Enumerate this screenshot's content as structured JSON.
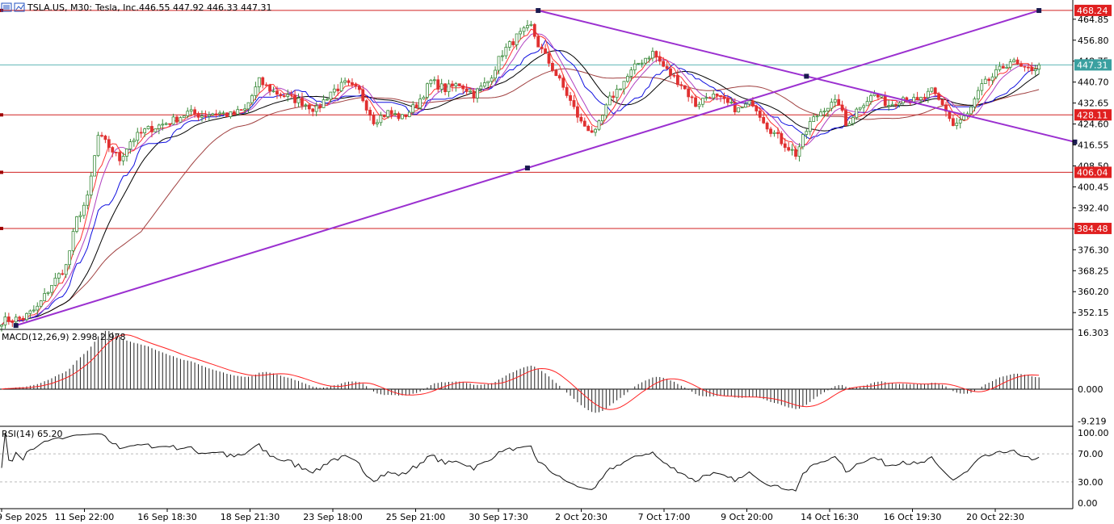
{
  "header": {
    "symbol": "TSLA.US, M30:",
    "name": "Tesla, Inc.",
    "ohlc": "446.55 447.92 446.33 447.31"
  },
  "macd_label": "MACD(12,26,9) 2.998 2.978",
  "rsi_label": "RSI(14) 65.20",
  "colors": {
    "bull": "#3a8a3a",
    "bear": "#e03030",
    "trendline": "#9b30d0",
    "level": "#d02020",
    "price_line": "#5fb5b5",
    "ma_black": "#000000",
    "ma_brown": "#a04040",
    "ma_blue": "#1010e0",
    "ma_purple": "#b040c0",
    "ma_red": "#ff3030"
  },
  "chart_data": {
    "type": "line",
    "price_axis": {
      "min": 346.0,
      "max": 471.0,
      "ticks": [
        "464.85",
        "456.80",
        "448.75",
        "440.70",
        "432.65",
        "424.60",
        "416.55",
        "408.50",
        "400.45",
        "392.40",
        "384.35",
        "376.30",
        "368.25",
        "360.20",
        "352.15"
      ],
      "tick_values": [
        464.85,
        456.8,
        448.75,
        440.7,
        432.65,
        424.6,
        416.55,
        408.5,
        400.45,
        392.4,
        384.35,
        376.3,
        368.25,
        360.2,
        352.15
      ]
    },
    "time_axis": {
      "labels": [
        "9 Sep 2025",
        "11 Sep 22:00",
        "16 Sep 18:30",
        "18 Sep 21:30",
        "23 Sep 18:00",
        "25 Sep 21:00",
        "30 Sep 17:30",
        "2 Oct 20:30",
        "7 Oct 17:00",
        "9 Oct 20:00",
        "14 Oct 16:30",
        "16 Oct 19:30",
        "20 Oct 22:30"
      ]
    },
    "current_price": 447.31,
    "horizontal_levels": [
      468.24,
      428.11,
      406.04,
      384.48
    ],
    "horizontal_level_labels": [
      "468.24",
      "428.11",
      "406.04",
      "384.48"
    ],
    "current_price_label": "447.31",
    "price_keypoints": [
      [
        0,
        349
      ],
      [
        6,
        350
      ],
      [
        10,
        354
      ],
      [
        14,
        363
      ],
      [
        18,
        370
      ],
      [
        21,
        388
      ],
      [
        24,
        396
      ],
      [
        27,
        420
      ],
      [
        30,
        416
      ],
      [
        33,
        411
      ],
      [
        36,
        418
      ],
      [
        40,
        422
      ],
      [
        44,
        424
      ],
      [
        48,
        426
      ],
      [
        52,
        429
      ],
      [
        56,
        428
      ],
      [
        60,
        429
      ],
      [
        64,
        428
      ],
      [
        68,
        430
      ],
      [
        72,
        441
      ],
      [
        76,
        437
      ],
      [
        80,
        435
      ],
      [
        84,
        433
      ],
      [
        88,
        430
      ],
      [
        92,
        437
      ],
      [
        96,
        440
      ],
      [
        100,
        437
      ],
      [
        104,
        426
      ],
      [
        108,
        429
      ],
      [
        112,
        427
      ],
      [
        116,
        432
      ],
      [
        120,
        441
      ],
      [
        124,
        438
      ],
      [
        128,
        440
      ],
      [
        132,
        436
      ],
      [
        136,
        441
      ],
      [
        140,
        452
      ],
      [
        144,
        458
      ],
      [
        148,
        462
      ],
      [
        150,
        455
      ],
      [
        154,
        446
      ],
      [
        158,
        436
      ],
      [
        162,
        425
      ],
      [
        166,
        421
      ],
      [
        170,
        434
      ],
      [
        174,
        441
      ],
      [
        178,
        448
      ],
      [
        182,
        452
      ],
      [
        186,
        445
      ],
      [
        190,
        440
      ],
      [
        194,
        432
      ],
      [
        198,
        436
      ],
      [
        202,
        433
      ],
      [
        206,
        430
      ],
      [
        210,
        433
      ],
      [
        214,
        424
      ],
      [
        218,
        418
      ],
      [
        222,
        413
      ],
      [
        226,
        425
      ],
      [
        230,
        431
      ],
      [
        234,
        433
      ],
      [
        236,
        424
      ],
      [
        240,
        432
      ],
      [
        244,
        436
      ],
      [
        248,
        432
      ],
      [
        252,
        435
      ],
      [
        256,
        433
      ],
      [
        260,
        437
      ],
      [
        264,
        430
      ],
      [
        266,
        424
      ],
      [
        270,
        428
      ],
      [
        274,
        439
      ],
      [
        278,
        444
      ],
      [
        282,
        449
      ],
      [
        286,
        445
      ],
      [
        290,
        447
      ]
    ],
    "trendlines": [
      {
        "name": "rising",
        "points": [
          [
            4,
            347.2
          ],
          [
            290,
            468.2
          ]
        ]
      },
      {
        "name": "falling",
        "points": [
          [
            150,
            468.2
          ],
          [
            300,
            417.7
          ]
        ]
      }
    ],
    "macd": {
      "label": "MACD(12,26,9) 2.998 2.978",
      "axis_ticks": [
        "16.303",
        "0.000",
        "-9.219"
      ],
      "axis_values": [
        16.303,
        0.0,
        -9.219
      ],
      "min": -10.5,
      "max": 17.0,
      "current": [
        2.998,
        2.978
      ]
    },
    "rsi": {
      "label": "RSI(14) 65.20",
      "axis_ticks": [
        "100.00",
        "70.00",
        "30.00",
        "0.00"
      ],
      "axis_values": [
        100,
        70,
        30,
        0
      ],
      "current": 65.2
    }
  }
}
